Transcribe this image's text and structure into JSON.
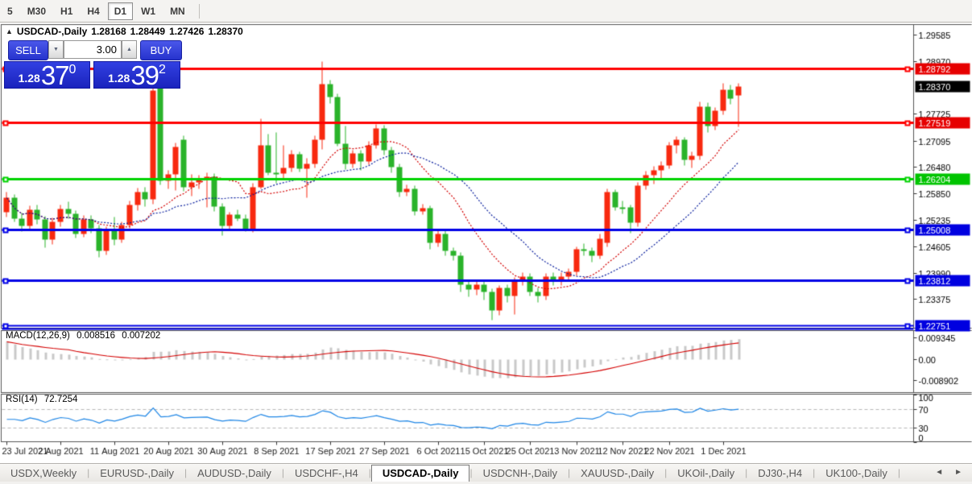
{
  "toolbar": {
    "timeframes": [
      {
        "label": "5",
        "active": false
      },
      {
        "label": "M30",
        "active": false
      },
      {
        "label": "H1",
        "active": false
      },
      {
        "label": "H4",
        "active": false
      },
      {
        "label": "D1",
        "active": true
      },
      {
        "label": "W1",
        "active": false
      },
      {
        "label": "MN",
        "active": false
      }
    ]
  },
  "chart_title": {
    "collapse_icon": "▲",
    "symbol": "USDCAD-,Daily",
    "open": "1.28168",
    "high": "1.28449",
    "low": "1.27426",
    "close": "1.28370"
  },
  "trade_panel": {
    "sell_label": "SELL",
    "buy_label": "BUY",
    "volume": "3.00",
    "spin_up_icon": "▲",
    "spin_down_icon": "▼",
    "sell_quote": {
      "prefix": "1.28",
      "big": "37",
      "sup": "0"
    },
    "buy_quote": {
      "prefix": "1.28",
      "big": "39",
      "sup": "2"
    }
  },
  "indicators": {
    "macd": {
      "label": "MACD(12,26,9)",
      "value": "0.008516",
      "signal": "0.007202"
    },
    "rsi": {
      "label": "RSI(14)",
      "value": "72.7254"
    }
  },
  "tabs": {
    "scroll_left_icon": "◄",
    "scroll_right_icon": "►",
    "items": [
      {
        "label": "USDX,Weekly",
        "active": false
      },
      {
        "label": "EURUSD-,Daily",
        "active": false
      },
      {
        "label": "AUDUSD-,Daily",
        "active": false
      },
      {
        "label": "USDCHF-,H4",
        "active": false
      },
      {
        "label": "USDCAD-,Daily",
        "active": true
      },
      {
        "label": "USDCNH-,Daily",
        "active": false
      },
      {
        "label": "XAUUSD-,Daily",
        "active": false
      },
      {
        "label": "UKOil-,Daily",
        "active": false
      },
      {
        "label": "DJ30-,H4",
        "active": false
      },
      {
        "label": "UK100-,Daily",
        "active": false
      }
    ]
  },
  "chart_data": {
    "type": "candlestick",
    "symbol": "USDCAD-,Daily",
    "y_axis": {
      "price_at_top": 1.29832,
      "price_at_bottom": 1.227
    },
    "price_ticks": [
      "1.29585",
      "1.28970",
      "1.27725",
      "1.27095",
      "1.26480",
      "1.25850",
      "1.25235",
      "1.24605",
      "1.23990",
      "1.23375"
    ],
    "price_tick_values": [
      1.29585,
      1.2897,
      1.27725,
      1.27095,
      1.2648,
      1.2585,
      1.25235,
      1.24605,
      1.2399,
      1.23375
    ],
    "badges": [
      {
        "price": 1.28792,
        "label": "1.28792",
        "bg": "#e60000"
      },
      {
        "price": 1.2837,
        "label": "1.28370",
        "bg": "#000000"
      },
      {
        "price": 1.27519,
        "label": "1.27519",
        "bg": "#e60000"
      },
      {
        "price": 1.26204,
        "label": "1.26204",
        "bg": "#00c400"
      },
      {
        "price": 1.25008,
        "label": "1.25008",
        "bg": "#0000e0"
      },
      {
        "price": 1.23812,
        "label": "1.23812",
        "bg": "#0000e0"
      },
      {
        "price": 1.22751,
        "label": "1.22751",
        "bg": "#0000e0"
      }
    ],
    "hlines": [
      {
        "price": 1.28792,
        "color": "#ff0000",
        "width": 3,
        "double": false
      },
      {
        "price": 1.27519,
        "color": "#ff0000",
        "width": 3,
        "double": false
      },
      {
        "price": 1.26204,
        "color": "#00d300",
        "width": 3,
        "double": false
      },
      {
        "price": 1.25008,
        "color": "#0000e6",
        "width": 3,
        "double": false
      },
      {
        "price": 1.23812,
        "color": "#0000e6",
        "width": 3,
        "double": false
      },
      {
        "price": 1.22751,
        "color": "#0000e6",
        "width": 2,
        "double": true
      }
    ],
    "x_labels": [
      {
        "index": 0,
        "label": "23 Jul 2021"
      },
      {
        "index": 7,
        "label": "2 Aug 2021"
      },
      {
        "index": 14,
        "label": "11 Aug 2021"
      },
      {
        "index": 21,
        "label": "20 Aug 2021"
      },
      {
        "index": 28,
        "label": "30 Aug 2021"
      },
      {
        "index": 35,
        "label": "8 Sep 2021"
      },
      {
        "index": 42,
        "label": "17 Sep 2021"
      },
      {
        "index": 49,
        "label": "27 Sep 2021"
      },
      {
        "index": 56,
        "label": "6 Oct 2021"
      },
      {
        "index": 62,
        "label": "15 Oct 2021"
      },
      {
        "index": 68,
        "label": "25 Oct 2021"
      },
      {
        "index": 74,
        "label": "3 Nov 2021"
      },
      {
        "index": 80,
        "label": "12 Nov 2021"
      },
      {
        "index": 86,
        "label": "22 Nov 2021"
      },
      {
        "index": 93,
        "label": "1 Dec 2021"
      }
    ],
    "candles": [
      [
        1.2542,
        1.259,
        1.2531,
        1.2576
      ],
      [
        1.2576,
        1.2584,
        1.2519,
        1.2528
      ],
      [
        1.2528,
        1.2541,
        1.2497,
        1.251
      ],
      [
        1.251,
        1.2557,
        1.2503,
        1.2548
      ],
      [
        1.2548,
        1.2559,
        1.2514,
        1.2525
      ],
      [
        1.2525,
        1.2533,
        1.246,
        1.2478
      ],
      [
        1.2478,
        1.2529,
        1.2467,
        1.252
      ],
      [
        1.252,
        1.2559,
        1.2509,
        1.255
      ],
      [
        1.255,
        1.2567,
        1.2527,
        1.2538
      ],
      [
        1.2538,
        1.2546,
        1.2481,
        1.2492
      ],
      [
        1.2492,
        1.2535,
        1.2483,
        1.2526
      ],
      [
        1.2526,
        1.2535,
        1.2493,
        1.2505
      ],
      [
        1.2505,
        1.2513,
        1.2437,
        1.2452
      ],
      [
        1.2452,
        1.2509,
        1.2443,
        1.25
      ],
      [
        1.25,
        1.2531,
        1.2465,
        1.2478
      ],
      [
        1.2478,
        1.252,
        1.2471,
        1.2512
      ],
      [
        1.2512,
        1.2569,
        1.2504,
        1.256
      ],
      [
        1.256,
        1.2599,
        1.2547,
        1.259
      ],
      [
        1.259,
        1.2601,
        1.2555,
        1.2572
      ],
      [
        1.2572,
        1.2843,
        1.2561,
        1.2828
      ],
      [
        1.2836,
        1.285,
        1.2606,
        1.2616
      ],
      [
        1.2616,
        1.2641,
        1.2597,
        1.2632
      ],
      [
        1.2632,
        1.2706,
        1.2594,
        1.2695
      ],
      [
        1.2712,
        1.2722,
        1.2592,
        1.2601
      ],
      [
        1.2601,
        1.2631,
        1.258,
        1.2612
      ],
      [
        1.2612,
        1.2629,
        1.2597,
        1.262
      ],
      [
        1.262,
        1.2636,
        1.2554,
        1.2625
      ],
      [
        1.2625,
        1.2633,
        1.2544,
        1.2556
      ],
      [
        1.2556,
        1.2563,
        1.2487,
        1.251
      ],
      [
        1.251,
        1.2543,
        1.2501,
        1.2537
      ],
      [
        1.2537,
        1.2549,
        1.2521,
        1.2528
      ],
      [
        1.2528,
        1.2537,
        1.2497,
        1.2502
      ],
      [
        1.2502,
        1.2611,
        1.2495,
        1.2602
      ],
      [
        1.2602,
        1.2762,
        1.2597,
        1.27
      ],
      [
        1.27,
        1.2725,
        1.2629,
        1.2636
      ],
      [
        1.2636,
        1.273,
        1.2611,
        1.2634
      ],
      [
        1.2634,
        1.27,
        1.2619,
        1.2646
      ],
      [
        1.2646,
        1.2689,
        1.2637,
        1.2678
      ],
      [
        1.2678,
        1.2685,
        1.2637,
        1.2644
      ],
      [
        1.2644,
        1.2669,
        1.2576,
        1.2655
      ],
      [
        1.2655,
        1.2722,
        1.2646,
        1.2712
      ],
      [
        1.2712,
        1.2896,
        1.269,
        1.2843
      ],
      [
        1.2843,
        1.2853,
        1.2798,
        1.2812
      ],
      [
        1.2812,
        1.282,
        1.2698,
        1.2703
      ],
      [
        1.2703,
        1.2744,
        1.2642,
        1.2655
      ],
      [
        1.2655,
        1.2689,
        1.2646,
        1.268
      ],
      [
        1.268,
        1.2688,
        1.2641,
        1.2662
      ],
      [
        1.2662,
        1.2709,
        1.2654,
        1.27
      ],
      [
        1.27,
        1.2748,
        1.2692,
        1.274
      ],
      [
        1.274,
        1.2746,
        1.2676,
        1.2688
      ],
      [
        1.2688,
        1.2695,
        1.2636,
        1.2648
      ],
      [
        1.2648,
        1.2656,
        1.2579,
        1.259
      ],
      [
        1.259,
        1.2606,
        1.2581,
        1.2598
      ],
      [
        1.2598,
        1.2604,
        1.2534,
        1.2545
      ],
      [
        1.2545,
        1.2561,
        1.2536,
        1.2552
      ],
      [
        1.2552,
        1.2558,
        1.2455,
        1.247
      ],
      [
        1.247,
        1.25,
        1.2461,
        1.2492
      ],
      [
        1.2492,
        1.2499,
        1.2441,
        1.2452
      ],
      [
        1.2452,
        1.246,
        1.2428,
        1.244
      ],
      [
        1.244,
        1.2447,
        1.2355,
        1.2372
      ],
      [
        1.2372,
        1.2382,
        1.2343,
        1.236
      ],
      [
        1.236,
        1.2381,
        1.2348,
        1.2372
      ],
      [
        1.2372,
        1.2379,
        1.2337,
        1.2355
      ],
      [
        1.2355,
        1.2362,
        1.2288,
        1.2312
      ],
      [
        1.2312,
        1.2371,
        1.23,
        1.2365
      ],
      [
        1.2365,
        1.2372,
        1.2331,
        1.2345
      ],
      [
        1.2345,
        1.2389,
        1.2302,
        1.2382
      ],
      [
        1.2382,
        1.24,
        1.2371,
        1.2392
      ],
      [
        1.2392,
        1.2398,
        1.2345,
        1.2356
      ],
      [
        1.2356,
        1.2364,
        1.2331,
        1.2346
      ],
      [
        1.2346,
        1.2399,
        1.2337,
        1.2392
      ],
      [
        1.2392,
        1.24,
        1.237,
        1.2382
      ],
      [
        1.2382,
        1.2401,
        1.2371,
        1.2392
      ],
      [
        1.2392,
        1.241,
        1.2381,
        1.2402
      ],
      [
        1.2402,
        1.2462,
        1.2393,
        1.2455
      ],
      [
        1.2455,
        1.2468,
        1.2441,
        1.2452
      ],
      [
        1.2452,
        1.2459,
        1.2426,
        1.244
      ],
      [
        1.244,
        1.2491,
        1.2432,
        1.248
      ],
      [
        1.247,
        1.2597,
        1.2462,
        1.259
      ],
      [
        1.259,
        1.2596,
        1.2546,
        1.2554
      ],
      [
        1.2554,
        1.2569,
        1.2539,
        1.2553
      ],
      [
        1.2553,
        1.256,
        1.2494,
        1.2517
      ],
      [
        1.2517,
        1.2612,
        1.2509,
        1.2605
      ],
      [
        1.2605,
        1.2638,
        1.2595,
        1.263
      ],
      [
        1.263,
        1.2651,
        1.2608,
        1.264
      ],
      [
        1.264,
        1.2661,
        1.2621,
        1.2652
      ],
      [
        1.2652,
        1.2707,
        1.2644,
        1.27
      ],
      [
        1.27,
        1.2721,
        1.268,
        1.2712
      ],
      [
        1.2712,
        1.2718,
        1.2652,
        1.2665
      ],
      [
        1.2665,
        1.2684,
        1.2647,
        1.2675
      ],
      [
        1.2675,
        1.2802,
        1.2666,
        1.279
      ],
      [
        1.279,
        1.2799,
        1.273,
        1.2745
      ],
      [
        1.2745,
        1.2788,
        1.2736,
        1.278
      ],
      [
        1.278,
        1.2845,
        1.2771,
        1.283
      ],
      [
        1.283,
        1.2841,
        1.2795,
        1.281
      ],
      [
        1.28168,
        1.28449,
        1.27426,
        1.2837
      ]
    ],
    "ma": {
      "fast_period": 12,
      "slow_period": 20
    },
    "macd": {
      "params": "12,26,9",
      "value": 0.008516,
      "signal": 0.007202,
      "scale_labels": [
        "0.009345",
        "0.00",
        "-0.008902"
      ],
      "scale_values": [
        0.009345,
        0.0,
        -0.008902
      ]
    },
    "rsi": {
      "period": 14,
      "value": 72.7254,
      "levels": [
        "100",
        "70",
        "30",
        "0"
      ],
      "level_values": [
        100,
        70,
        30,
        0
      ],
      "dashed_levels": [
        70,
        30
      ]
    },
    "colors": {
      "up_candle": "#f8290f",
      "down_candle": "#2ab32a",
      "ma_fast": "#d40000",
      "ma_slow": "#0a1f9e",
      "macd_hist": "#c9c9c9",
      "macd_signal": "#d40000",
      "rsi_line": "#1e86e6",
      "pane_border": "#555555",
      "axis_text": "#000000"
    }
  }
}
